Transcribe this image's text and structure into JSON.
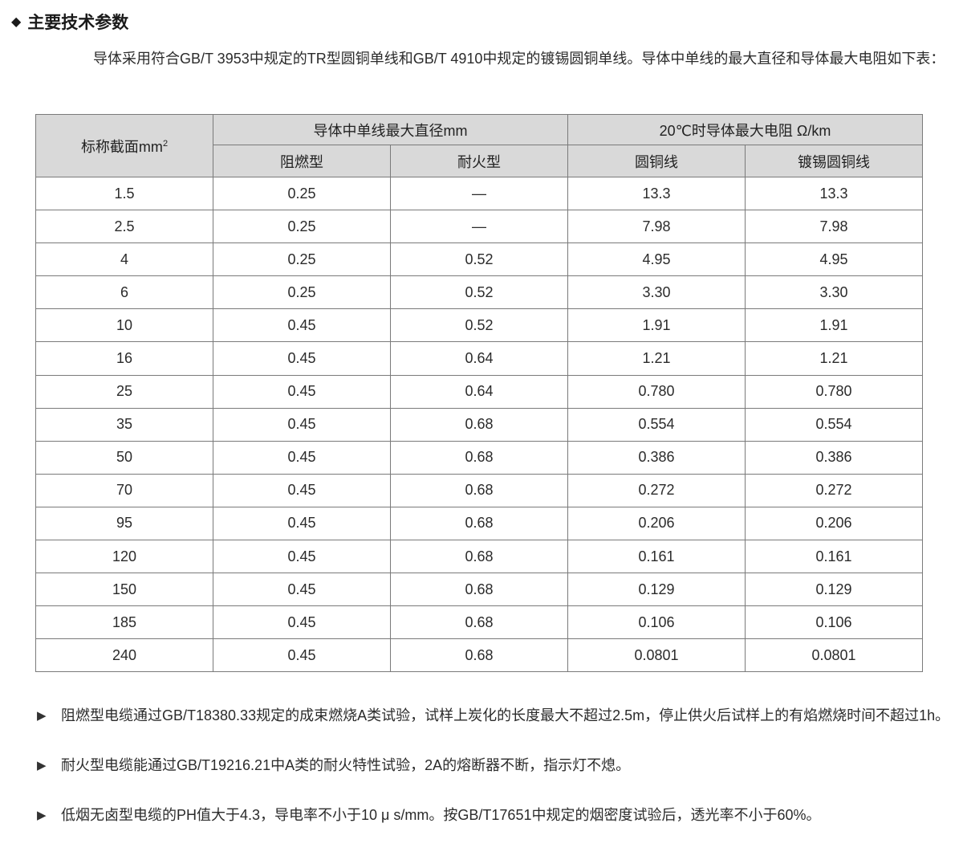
{
  "section_title": "主要技术参数",
  "intro": "导体采用符合GB/T 3953中规定的TR型圆铜单线和GB/T 4910中规定的镀锡圆铜单线。导体中单线的最大直径和导体最大电阻如下表：",
  "table": {
    "col0": "标称截面mm",
    "col0_sup": "2",
    "group1": "导体中单线最大直径mm",
    "group2": "20℃时导体最大电阻 Ω/km",
    "sub": [
      "阻燃型",
      "耐火型",
      "圆铜线",
      "镀锡圆铜线"
    ],
    "rows": [
      [
        "1.5",
        "0.25",
        "—",
        "13.3",
        "13.3"
      ],
      [
        "2.5",
        "0.25",
        "—",
        "7.98",
        "7.98"
      ],
      [
        "4",
        "0.25",
        "0.52",
        "4.95",
        "4.95"
      ],
      [
        "6",
        "0.25",
        "0.52",
        "3.30",
        "3.30"
      ],
      [
        "10",
        "0.45",
        "0.52",
        "1.91",
        "1.91"
      ],
      [
        "16",
        "0.45",
        "0.64",
        "1.21",
        "1.21"
      ],
      [
        "25",
        "0.45",
        "0.64",
        "0.780",
        "0.780"
      ],
      [
        "35",
        "0.45",
        "0.68",
        "0.554",
        "0.554"
      ],
      [
        "50",
        "0.45",
        "0.68",
        "0.386",
        "0.386"
      ],
      [
        "70",
        "0.45",
        "0.68",
        "0.272",
        "0.272"
      ],
      [
        "95",
        "0.45",
        "0.68",
        "0.206",
        "0.206"
      ],
      [
        "120",
        "0.45",
        "0.68",
        "0.161",
        "0.161"
      ],
      [
        "150",
        "0.45",
        "0.68",
        "0.129",
        "0.129"
      ],
      [
        "185",
        "0.45",
        "0.68",
        "0.106",
        "0.106"
      ],
      [
        "240",
        "0.45",
        "0.68",
        "0.0801",
        "0.0801"
      ]
    ]
  },
  "notes": [
    "阻燃型电缆通过GB/T18380.33规定的成束燃烧A类试验，试样上炭化的长度最大不超过2.5m，停止供火后试样上的有焰燃烧时间不超过1h。",
    "耐火型电缆能通过GB/T19216.21中A类的耐火特性试验，2A的熔断器不断，指示灯不熄。",
    "低烟无卤型电缆的PH值大于4.3，导电率不小于10 μ s/mm。按GB/T17651中规定的烟密度试验后，透光率不小于60%。"
  ],
  "colors": {
    "header_bg": "#d9d9d9",
    "border": "#7a7a7a"
  }
}
